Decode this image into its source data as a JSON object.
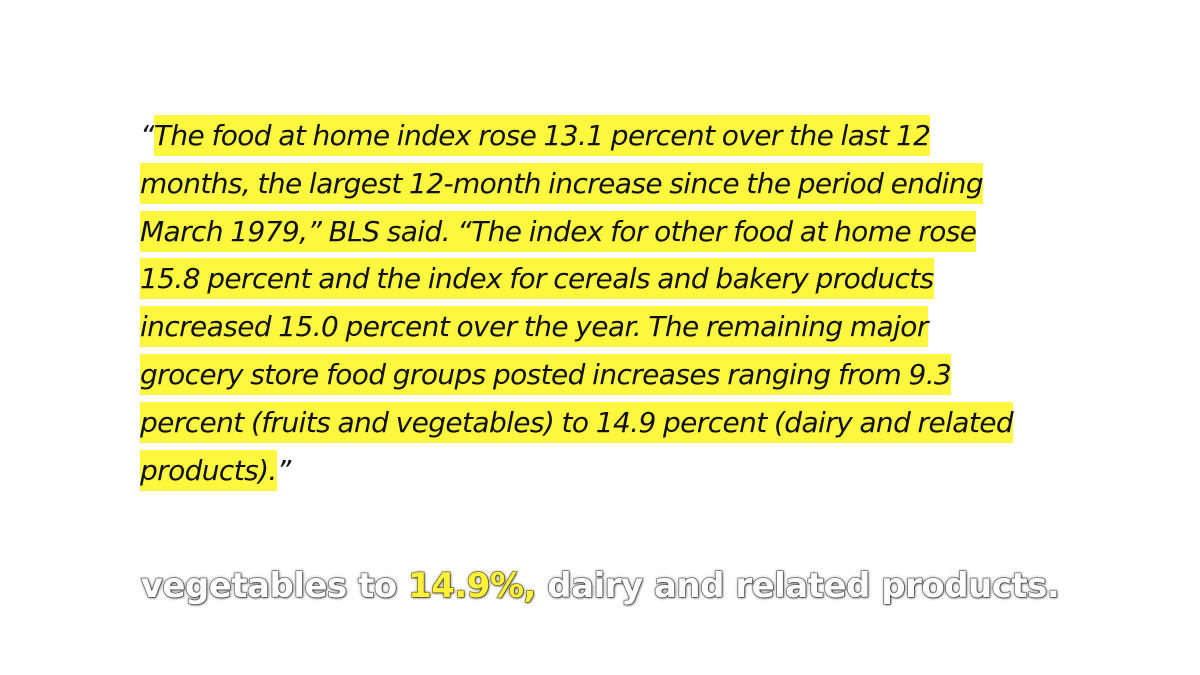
{
  "quote": {
    "open_mark": "“",
    "lines": [
      "The food at home index rose 13.1 percent over the last 12",
      "months, the largest 12-month increase since the period ending",
      "March 1979,” BLS said. “The index for other food at home rose",
      "15.8 percent and the index for cereals and bakery products",
      "increased 15.0 percent over the year. The remaining major",
      "grocery store food groups posted increases ranging from 9.3",
      "percent (fruits and vegetables) to 14.9 percent (dairy and related",
      "products)."
    ],
    "close_mark": "”",
    "highlight_color": "#fdf73d"
  },
  "caption": {
    "before": "vegetables to ",
    "highlight": "14.9%,",
    "after": " dairy and related products.",
    "highlight_color": "#fff03a"
  }
}
